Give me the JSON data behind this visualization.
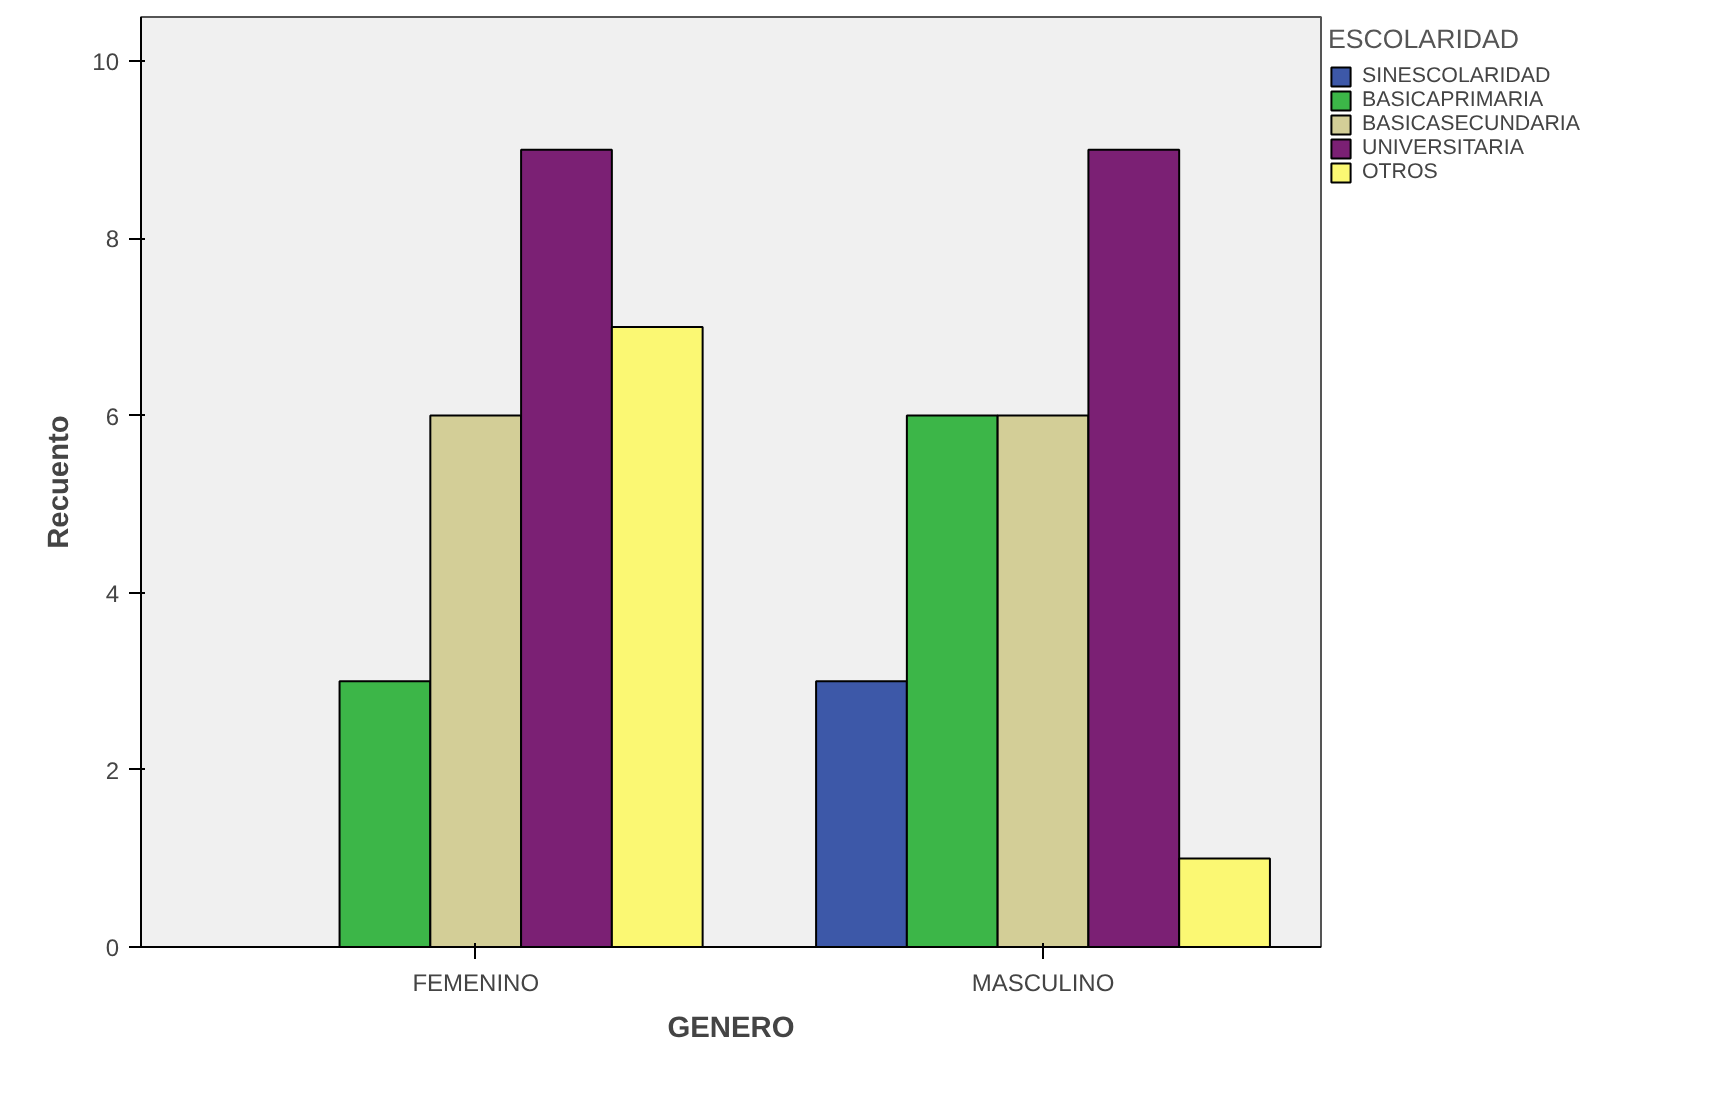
{
  "chart_data": {
    "type": "bar",
    "xlabel": "GENERO",
    "ylabel": "Recuento",
    "legend_title": "ESCOLARIDAD",
    "categories": [
      "FEMENINO",
      "MASCULINO"
    ],
    "series": [
      {
        "name": "SINESCOLARIDAD",
        "color": "#3d58a8",
        "values": [
          null,
          3
        ]
      },
      {
        "name": "BASICAPRIMARIA",
        "color": "#3cb648",
        "values": [
          3,
          6
        ]
      },
      {
        "name": "BASICASECUNDARIA",
        "color": "#d3ce97",
        "values": [
          6,
          6
        ]
      },
      {
        "name": "UNIVERSITARIA",
        "color": "#7b2074",
        "values": [
          9,
          9
        ]
      },
      {
        "name": "OTROS",
        "color": "#fbf873",
        "values": [
          7,
          1
        ]
      }
    ],
    "ylim": [
      0,
      10.5
    ],
    "yticks": [
      0,
      2,
      4,
      6,
      8,
      10
    ],
    "grid": false,
    "legend": "top right"
  }
}
